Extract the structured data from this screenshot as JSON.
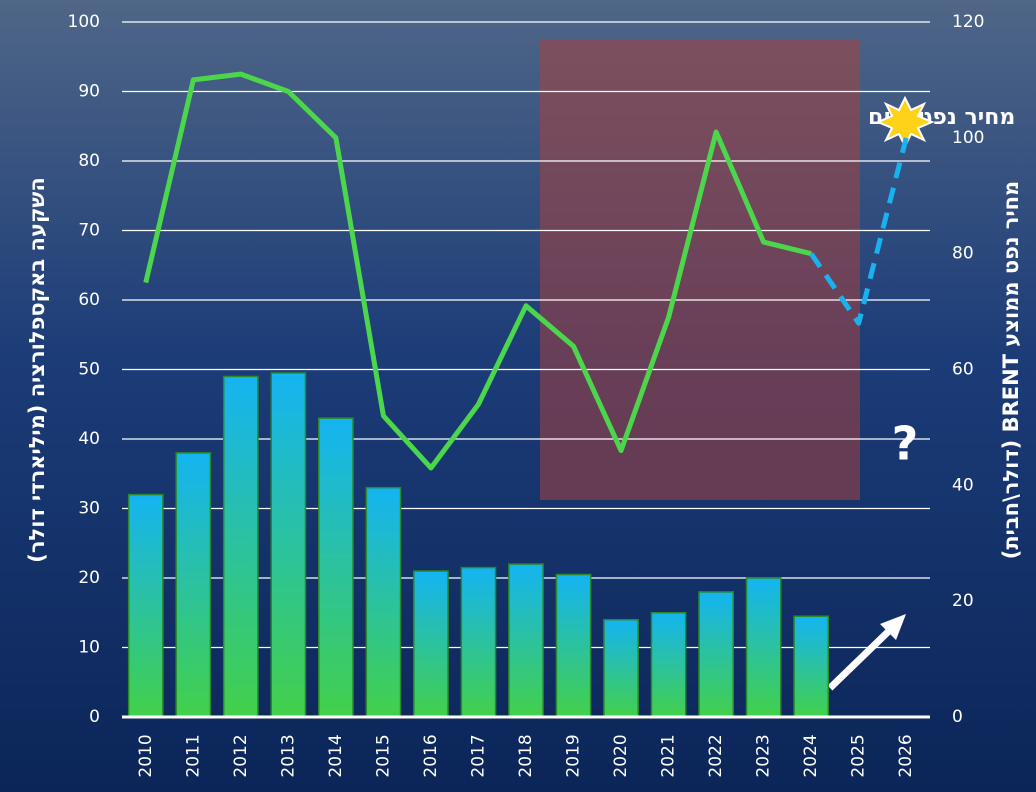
{
  "chart_data": {
    "type": "combo",
    "y_label": "השקעה באקספלורציה (מיליארדי דולר)",
    "y2_label": "מחיר נפט ממוצע BRENT (דולר\\חבית)",
    "annotations": [
      "מחיר נפט כיום",
      "?"
    ],
    "categories": [
      "2010",
      "2011",
      "2012",
      "2013",
      "2014",
      "2015",
      "2016",
      "2017",
      "2018",
      "2019",
      "2020",
      "2021",
      "2022",
      "2023",
      "2024",
      "2025",
      "2026"
    ],
    "ylim": [
      0,
      100
    ],
    "yticks": [
      0,
      10,
      20,
      30,
      40,
      50,
      60,
      70,
      80,
      90,
      100
    ],
    "y2lim": [
      0,
      120
    ],
    "y2ticks": [
      0,
      20,
      40,
      60,
      80,
      100,
      120
    ],
    "grid": true,
    "series": [
      {
        "type": "bar",
        "color": "#19b2ee",
        "values": [
          32,
          38,
          49,
          49.5,
          43,
          33,
          21,
          21.5,
          22,
          20.5,
          14,
          15,
          18,
          20,
          14.5,
          null,
          null
        ]
      },
      {
        "type": "line",
        "axis": "y2",
        "color": "#4cd64c",
        "values": [
          75,
          110,
          111,
          108,
          100,
          52,
          43,
          54,
          71,
          64,
          46,
          69,
          101,
          82,
          80,
          null,
          null
        ]
      },
      {
        "type": "line",
        "axis": "y2",
        "dashed": true,
        "color": "#19b2ee",
        "values": [
          null,
          null,
          null,
          null,
          null,
          null,
          null,
          null,
          null,
          null,
          null,
          null,
          null,
          null,
          80,
          68,
          100
        ]
      }
    ]
  }
}
